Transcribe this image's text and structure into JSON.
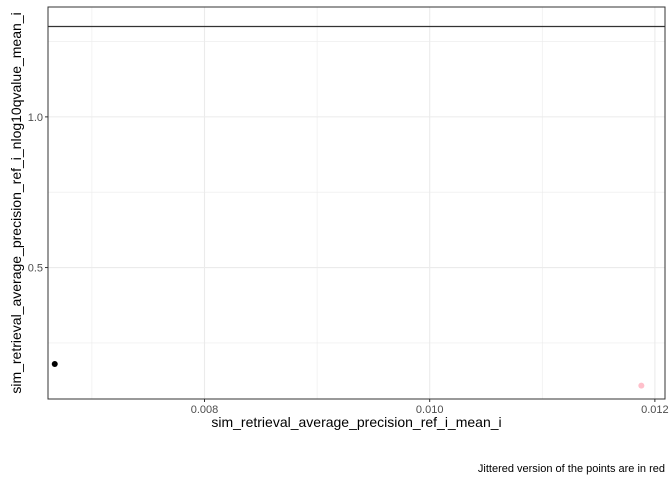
{
  "chart_data": {
    "type": "scatter",
    "xlabel": "sim_retrieval_average_precision_ref_i_mean_i",
    "ylabel": "sim_retrieval_average_precision_ref_i_nlog10qvalue_mean_i",
    "caption": "Jittered version of the points are in red",
    "xlim": [
      0.00661,
      0.01209
    ],
    "ylim": [
      0.0638,
      1.3646
    ],
    "x_ticks": [
      0.008,
      0.01,
      0.012
    ],
    "x_tick_labels": [
      "0.008",
      "0.010",
      "0.012"
    ],
    "x_minor_ticks": [
      0.007,
      0.009,
      0.011
    ],
    "y_ticks": [
      0.5,
      1.0
    ],
    "y_tick_labels": [
      "0.5",
      "1.0"
    ],
    "y_minor_ticks": [
      0.25,
      0.75,
      1.25
    ],
    "hline": 1.3,
    "grid": true,
    "series": [
      {
        "points": [
          {
            "x": 0.00667,
            "y": 0.18
          }
        ],
        "color": "#000000"
      },
      {
        "points": [
          {
            "x": 0.01188,
            "y": 0.108
          }
        ],
        "color": "#ffc0cb"
      }
    ]
  }
}
